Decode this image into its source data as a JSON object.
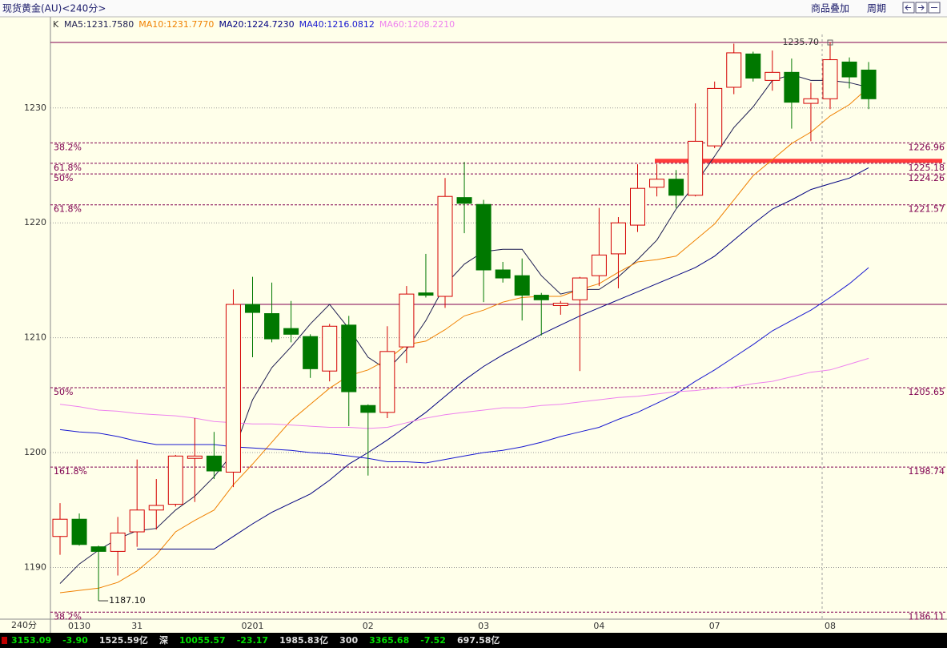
{
  "header": {
    "title": "现货黄金(AU)<240分>",
    "buttons": [
      "商品叠加",
      "周期"
    ]
  },
  "chart_data": {
    "type": "candlestick",
    "legend_prefix": "K",
    "x_axis_label": "240分",
    "categories": [
      null,
      "0130",
      null,
      null,
      "31",
      null,
      null,
      null,
      null,
      null,
      "0201",
      null,
      null,
      null,
      null,
      null,
      "02",
      null,
      null,
      null,
      null,
      null,
      "03",
      null,
      null,
      null,
      null,
      null,
      "04",
      null,
      null,
      null,
      null,
      null,
      "07",
      null,
      null,
      null,
      null,
      null,
      "08",
      null,
      null
    ],
    "open": [
      1192.7,
      1194.2,
      1191.8,
      1191.4,
      1193.1,
      1195.0,
      1195.5,
      1199.5,
      1199.7,
      1198.3,
      1212.9,
      1212.1,
      1210.8,
      1210.1,
      1207.1,
      1211.1,
      1204.1,
      1203.5,
      1209.2,
      1213.9,
      1213.6,
      1222.2,
      1221.6,
      1215.9,
      1215.4,
      1213.7,
      1212.8,
      1213.3,
      1215.4,
      1217.3,
      1219.8,
      1223.1,
      1223.8,
      1222.4,
      1226.7,
      1231.8,
      1234.7,
      1232.4,
      1233.1,
      1230.4,
      1230.8,
      1234.0,
      1233.3
    ],
    "high": [
      1195.6,
      1194.7,
      1191.9,
      1194.4,
      1199.4,
      1197.7,
      1199.8,
      1203.0,
      1201.8,
      1214.2,
      1215.3,
      1214.8,
      1213.2,
      1210.3,
      1211.2,
      1211.9,
      1204.2,
      1211.0,
      1214.5,
      1217.3,
      1223.9,
      1225.3,
      1222.0,
      1216.6,
      1216.9,
      1213.9,
      1213.2,
      1215.3,
      1221.3,
      1220.5,
      1225.1,
      1225.1,
      1224.6,
      1230.4,
      1232.3,
      1235.6,
      1234.9,
      1235.0,
      1234.3,
      1232.2,
      1235.7,
      1234.4,
      1234.0
    ],
    "low": [
      1191.1,
      1191.9,
      1187.1,
      1189.3,
      1191.8,
      1193.3,
      1195.3,
      1195.7,
      1197.7,
      1197.0,
      1208.3,
      1209.6,
      1209.6,
      1206.5,
      1206.2,
      1202.3,
      1198.0,
      1203.0,
      1207.8,
      1213.5,
      1212.6,
      1219.1,
      1213.1,
      1214.8,
      1211.5,
      1210.2,
      1212.0,
      1207.1,
      1214.5,
      1214.3,
      1219.2,
      1222.3,
      1221.3,
      1222.3,
      1226.5,
      1231.2,
      1232.3,
      1231.5,
      1228.2,
      1227.1,
      1229.9,
      1231.7,
      1229.9
    ],
    "close": [
      1194.2,
      1192.0,
      1191.4,
      1193.0,
      1195.0,
      1195.4,
      1199.7,
      1199.7,
      1198.4,
      1212.9,
      1212.2,
      1209.9,
      1210.3,
      1207.3,
      1211.0,
      1205.3,
      1203.5,
      1208.8,
      1213.8,
      1213.7,
      1222.3,
      1221.7,
      1215.9,
      1215.2,
      1213.7,
      1213.3,
      1213.0,
      1215.2,
      1217.2,
      1220.0,
      1223.0,
      1223.8,
      1222.4,
      1227.1,
      1231.7,
      1234.8,
      1232.6,
      1233.1,
      1230.5,
      1230.8,
      1234.2,
      1232.7,
      1230.8
    ],
    "up_color": "#d40000",
    "down_color": "#007800",
    "series": [
      {
        "name": "MA5:1231.7580",
        "color": "#1c1c50",
        "values": [
          1188.6,
          1190.3,
          1191.5,
          1192.5,
          1193.2,
          1193.4,
          1195.0,
          1196.2,
          1197.9,
          1200.0,
          1204.6,
          1207.4,
          1209.2,
          1211.2,
          1212.9,
          1210.8,
          1208.3,
          1207.2,
          1209.0,
          1211.5,
          1214.6,
          1216.4,
          1217.5,
          1217.7,
          1217.7,
          1215.4,
          1213.8,
          1214.2,
          1214.2,
          1215.3,
          1216.8,
          1218.5,
          1221.2,
          1223.4,
          1225.8,
          1228.3,
          1230.1,
          1232.4,
          1232.9,
          1232.4,
          1232.4,
          1232.2,
          1231.8
        ]
      },
      {
        "name": "MA10:1231.7770",
        "color": "#f08000",
        "values": [
          1187.8,
          1188.0,
          1188.2,
          1188.7,
          1189.7,
          1191.1,
          1193.1,
          1194.1,
          1195.0,
          1197.2,
          1199.0,
          1200.9,
          1202.8,
          1204.2,
          1205.6,
          1206.7,
          1207.2,
          1208.1,
          1209.4,
          1209.7,
          1210.7,
          1211.9,
          1212.4,
          1213.1,
          1213.5,
          1213.6,
          1213.6,
          1214.2,
          1214.7,
          1215.7,
          1216.6,
          1216.8,
          1217.1,
          1218.5,
          1219.9,
          1222.0,
          1224.1,
          1225.5,
          1226.9,
          1227.9,
          1229.3,
          1230.3,
          1231.8
        ]
      },
      {
        "name": "MA20:1224.7230",
        "color": "#000080",
        "values": [
          null,
          null,
          null,
          null,
          1191.6,
          1191.6,
          1191.6,
          1191.6,
          1191.6,
          1192.7,
          1193.8,
          1194.8,
          1195.6,
          1196.4,
          1197.6,
          1199.0,
          1200.0,
          1201.1,
          1202.3,
          1203.5,
          1204.9,
          1206.3,
          1207.5,
          1208.5,
          1209.4,
          1210.3,
          1211.1,
          1211.9,
          1212.6,
          1213.3,
          1214.0,
          1214.7,
          1215.4,
          1216.1,
          1217.1,
          1218.5,
          1219.9,
          1221.2,
          1222.0,
          1222.9,
          1223.4,
          1223.9,
          1224.8
        ]
      },
      {
        "name": "MA40:1216.0812",
        "color": "#1818d0",
        "values": [
          1202.0,
          1201.8,
          1201.7,
          1201.4,
          1201.0,
          1200.7,
          1200.7,
          1200.7,
          1200.7,
          1200.5,
          1200.4,
          1200.3,
          1200.2,
          1200.0,
          1199.9,
          1199.7,
          1199.5,
          1199.2,
          1199.2,
          1199.1,
          1199.4,
          1199.7,
          1200.0,
          1200.2,
          1200.5,
          1200.9,
          1201.4,
          1201.8,
          1202.2,
          1202.9,
          1203.5,
          1204.3,
          1205.1,
          1206.2,
          1207.2,
          1208.3,
          1209.4,
          1210.6,
          1211.5,
          1212.4,
          1213.5,
          1214.7,
          1216.1
        ]
      },
      {
        "name": "MA60:1208.2210",
        "color": "#ee82ee",
        "values": [
          1204.2,
          1204.0,
          1203.7,
          1203.6,
          1203.4,
          1203.3,
          1203.2,
          1203.0,
          1202.7,
          1202.6,
          1202.5,
          1202.5,
          1202.4,
          1202.3,
          1202.2,
          1202.2,
          1202.1,
          1202.2,
          1202.6,
          1203.0,
          1203.3,
          1203.5,
          1203.7,
          1203.9,
          1203.9,
          1204.1,
          1204.2,
          1204.4,
          1204.6,
          1204.8,
          1204.9,
          1205.1,
          1205.3,
          1205.4,
          1205.6,
          1205.7,
          1206.0,
          1206.2,
          1206.6,
          1207.0,
          1207.2,
          1207.7,
          1208.2
        ]
      }
    ],
    "ylim": [
      1185.5,
      1236.4
    ],
    "yticks": [
      1190,
      1200,
      1210,
      1220,
      1230
    ],
    "grid": true,
    "fib_levels": [
      {
        "label": "38.2%",
        "value": 1226.96
      },
      {
        "label": "61.8%",
        "value": 1225.18
      },
      {
        "label": "50%",
        "value": 1224.26
      },
      {
        "label": "61.8%",
        "value": 1221.57
      },
      {
        "label": "50%",
        "value": 1205.65
      },
      {
        "label": "161.8%",
        "value": 1198.74
      },
      {
        "label": "38.2%",
        "value": 1186.11
      }
    ],
    "fib_color": "#800050",
    "high_label": {
      "value": 1235.7,
      "label": "1235.70"
    },
    "low_label": {
      "value": 1187.1,
      "label": "1187.10"
    },
    "support_line": {
      "value": 1212.9,
      "color": "#800050"
    },
    "marker_line": {
      "value": 1225.4,
      "color": "#ff3b3b"
    }
  },
  "status_bar": [
    {
      "text": "3153.09",
      "color": "#00e000"
    },
    {
      "text": "-3.90",
      "color": "#00e000"
    },
    {
      "text": "1525.59亿",
      "color": "#e0e0e0"
    },
    {
      "text": "深",
      "color": "#e0e0e0"
    },
    {
      "text": "10055.57",
      "color": "#00e000"
    },
    {
      "text": "-23.17",
      "color": "#00e000"
    },
    {
      "text": "1985.83亿",
      "color": "#e0e0e0"
    },
    {
      "text": "300",
      "color": "#e0e0e0"
    },
    {
      "text": "3365.68",
      "color": "#00e000"
    },
    {
      "text": "-7.52",
      "color": "#00e000"
    },
    {
      "text": "697.58亿",
      "color": "#e0e0e0"
    }
  ]
}
